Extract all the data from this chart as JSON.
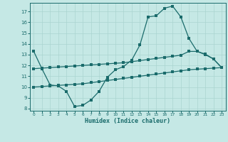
{
  "xlabel": "Humidex (Indice chaleur)",
  "bg_color": "#c5e8e5",
  "line_color": "#1a6b6b",
  "grid_color": "#aad4d0",
  "xlim": [
    -0.5,
    23.5
  ],
  "ylim": [
    7.8,
    17.8
  ],
  "yticks": [
    8,
    9,
    10,
    11,
    12,
    13,
    14,
    15,
    16,
    17
  ],
  "xticks": [
    0,
    1,
    2,
    3,
    4,
    5,
    6,
    7,
    8,
    9,
    10,
    11,
    12,
    13,
    14,
    15,
    16,
    17,
    18,
    19,
    20,
    21,
    22,
    23
  ],
  "curve1_x": [
    0,
    1,
    2,
    3,
    4,
    5,
    6,
    7,
    8,
    9,
    10,
    11,
    12,
    13,
    14,
    15,
    16,
    17,
    18,
    19,
    20,
    21,
    22,
    23
  ],
  "curve1_y": [
    13.3,
    11.7,
    10.2,
    10.1,
    9.6,
    8.2,
    8.3,
    8.8,
    9.6,
    10.9,
    11.6,
    11.9,
    12.5,
    13.9,
    16.5,
    16.6,
    17.3,
    17.5,
    16.5,
    14.5,
    13.3,
    13.0,
    12.6,
    11.8
  ],
  "curve2_x": [
    0,
    1,
    2,
    3,
    4,
    5,
    6,
    7,
    8,
    9,
    10,
    11,
    12,
    13,
    14,
    15,
    16,
    17,
    18,
    19,
    20,
    21,
    22,
    23
  ],
  "curve2_y": [
    11.7,
    11.75,
    11.8,
    11.85,
    11.9,
    11.95,
    12.0,
    12.05,
    12.1,
    12.15,
    12.2,
    12.25,
    12.35,
    12.45,
    12.55,
    12.65,
    12.75,
    12.85,
    12.95,
    13.3,
    13.3,
    13.05,
    12.6,
    11.8
  ],
  "curve3_x": [
    0,
    1,
    2,
    3,
    4,
    5,
    6,
    7,
    8,
    9,
    10,
    11,
    12,
    13,
    14,
    15,
    16,
    17,
    18,
    19,
    20,
    21,
    22,
    23
  ],
  "curve3_y": [
    10.0,
    10.05,
    10.1,
    10.15,
    10.2,
    10.25,
    10.3,
    10.4,
    10.5,
    10.6,
    10.7,
    10.8,
    10.9,
    11.0,
    11.1,
    11.2,
    11.3,
    11.4,
    11.5,
    11.6,
    11.65,
    11.7,
    11.75,
    11.8
  ]
}
